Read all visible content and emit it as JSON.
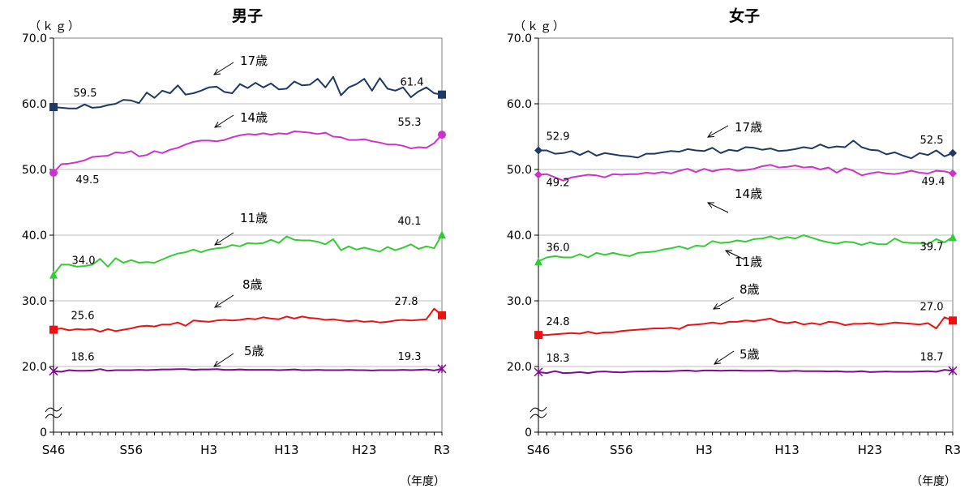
{
  "x_tick_labels": [
    "S46",
    "S56",
    "H3",
    "H13",
    "H23",
    "R3"
  ],
  "y_tick_labels": [
    "70.0",
    "60.0",
    "50.0",
    "40.0",
    "30.0",
    "20.0",
    "0"
  ],
  "unit_label": "（ｋｇ）",
  "year_label": "（年度）",
  "chart_data": [
    {
      "type": "line",
      "title": "男子",
      "xlabel": "（年度）",
      "ylabel": "（ｋｇ）",
      "ylim": [
        0,
        70
      ],
      "axis_break": "between 0 and 20",
      "grid": true,
      "x": [
        "S46",
        "S47",
        "S48",
        "S49",
        "S50",
        "S51",
        "S52",
        "S53",
        "S54",
        "S55",
        "S56",
        "S57",
        "S58",
        "S59",
        "S60",
        "S61",
        "S62",
        "S63",
        "H1",
        "H2",
        "H3",
        "H4",
        "H5",
        "H6",
        "H7",
        "H8",
        "H9",
        "H10",
        "H11",
        "H12",
        "H13",
        "H14",
        "H15",
        "H16",
        "H17",
        "H18",
        "H19",
        "H20",
        "H21",
        "H22",
        "H23",
        "H24",
        "H25",
        "H26",
        "H27",
        "H28",
        "H29",
        "H30",
        "R1",
        "R2",
        "R3"
      ],
      "series": [
        {
          "name": "17歳",
          "color": "#1f3864",
          "marker": "square",
          "start_label": "59.5",
          "end_label": "61.4",
          "values": [
            59.5,
            59.4,
            59.3,
            59.3,
            59.9,
            59.4,
            59.5,
            59.8,
            60.0,
            60.6,
            60.5,
            60.1,
            61.7,
            60.9,
            62.0,
            61.6,
            62.8,
            61.4,
            61.6,
            62.0,
            62.5,
            62.6,
            61.8,
            61.6,
            63.0,
            62.4,
            63.2,
            62.5,
            63.1,
            62.2,
            62.3,
            63.4,
            62.8,
            62.9,
            63.8,
            62.5,
            64.1,
            61.3,
            62.5,
            63.0,
            63.8,
            62.0,
            63.9,
            62.3,
            62.0,
            62.5,
            61.0,
            61.9,
            62.5,
            61.6,
            61.4
          ]
        },
        {
          "name": "14歳",
          "color": "#cc33cc",
          "marker": "circle",
          "start_label": "49.5",
          "end_label": "55.3",
          "values": [
            49.5,
            50.8,
            50.9,
            51.1,
            51.4,
            51.9,
            52.0,
            52.1,
            52.6,
            52.5,
            52.8,
            52.0,
            52.2,
            52.8,
            52.5,
            53.0,
            53.3,
            53.8,
            54.2,
            54.4,
            54.4,
            54.3,
            54.5,
            54.9,
            55.2,
            55.4,
            55.3,
            55.5,
            55.3,
            55.5,
            55.4,
            55.8,
            55.7,
            55.6,
            55.4,
            55.6,
            55.0,
            54.9,
            54.5,
            54.5,
            54.6,
            54.3,
            54.1,
            53.8,
            53.8,
            53.6,
            53.2,
            53.4,
            53.3,
            54.0,
            55.3
          ]
        },
        {
          "name": "11歳",
          "color": "#33cc33",
          "marker": "triangle",
          "start_label": "34.0",
          "end_label": "40.1",
          "values": [
            34.0,
            35.5,
            35.5,
            35.2,
            35.3,
            35.5,
            36.4,
            35.2,
            36.5,
            35.8,
            36.2,
            35.8,
            35.9,
            35.8,
            36.3,
            36.8,
            37.2,
            37.4,
            37.8,
            37.4,
            37.8,
            38.0,
            38.1,
            38.5,
            38.3,
            38.8,
            38.7,
            38.8,
            39.3,
            38.8,
            39.8,
            39.3,
            39.2,
            39.2,
            39.0,
            38.6,
            39.4,
            37.7,
            38.3,
            37.8,
            38.1,
            37.8,
            37.5,
            38.2,
            37.7,
            38.1,
            38.6,
            37.9,
            38.3,
            38.0,
            40.1
          ]
        },
        {
          "name": "8歳",
          "color": "#ee1111",
          "marker": "square",
          "start_label": "25.6",
          "end_label": "27.8",
          "values": [
            25.6,
            25.8,
            25.5,
            25.7,
            25.6,
            25.7,
            25.3,
            25.7,
            25.4,
            25.6,
            25.8,
            26.1,
            26.2,
            26.1,
            26.4,
            26.4,
            26.7,
            26.2,
            27.0,
            26.9,
            26.8,
            27.0,
            27.1,
            27.0,
            27.1,
            27.3,
            27.2,
            27.5,
            27.3,
            27.2,
            27.6,
            27.3,
            27.6,
            27.4,
            27.3,
            27.1,
            27.2,
            27.0,
            26.9,
            27.0,
            26.8,
            26.9,
            26.7,
            26.8,
            27.0,
            27.1,
            27.0,
            27.1,
            27.2,
            28.8,
            27.8
          ]
        },
        {
          "name": "5歳",
          "color": "#7b0d8c",
          "marker": "star",
          "start_label": "18.6",
          "end_label": "19.3",
          "values": [
            18.6,
            18.4,
            18.9,
            18.7,
            18.7,
            18.8,
            19.2,
            18.7,
            18.9,
            18.9,
            18.9,
            19.0,
            18.9,
            19.0,
            19.1,
            19.1,
            19.2,
            19.2,
            19.0,
            19.1,
            19.1,
            19.2,
            19.0,
            19.0,
            19.1,
            19.0,
            19.0,
            19.0,
            19.0,
            18.9,
            19.0,
            19.1,
            18.9,
            18.9,
            19.0,
            18.9,
            18.9,
            18.9,
            19.0,
            18.9,
            18.9,
            18.8,
            18.9,
            18.9,
            18.9,
            19.0,
            18.9,
            19.0,
            19.1,
            18.8,
            19.3
          ]
        }
      ]
    },
    {
      "type": "line",
      "title": "女子",
      "xlabel": "（年度）",
      "ylabel": "（ｋｇ）",
      "ylim": [
        0,
        70
      ],
      "axis_break": "between 0 and 20",
      "grid": true,
      "x": [
        "S46",
        "S47",
        "S48",
        "S49",
        "S50",
        "S51",
        "S52",
        "S53",
        "S54",
        "S55",
        "S56",
        "S57",
        "S58",
        "S59",
        "S60",
        "S61",
        "S62",
        "S63",
        "H1",
        "H2",
        "H3",
        "H4",
        "H5",
        "H6",
        "H7",
        "H8",
        "H9",
        "H10",
        "H11",
        "H12",
        "H13",
        "H14",
        "H15",
        "H16",
        "H17",
        "H18",
        "H19",
        "H20",
        "H21",
        "H22",
        "H23",
        "H24",
        "H25",
        "H26",
        "H27",
        "H28",
        "H29",
        "H30",
        "R1",
        "R2",
        "R3"
      ],
      "series": [
        {
          "name": "17歳",
          "color": "#1f3864",
          "marker": "diamond",
          "start_label": "52.9",
          "end_label": "52.5",
          "values": [
            52.9,
            52.9,
            52.4,
            52.5,
            52.8,
            52.2,
            52.8,
            52.1,
            52.5,
            52.3,
            52.1,
            52.0,
            51.8,
            52.4,
            52.4,
            52.6,
            52.8,
            52.7,
            53.1,
            52.9,
            52.8,
            53.3,
            52.5,
            53.0,
            52.8,
            53.4,
            53.3,
            53.0,
            53.2,
            52.8,
            52.9,
            53.1,
            53.4,
            53.2,
            53.8,
            53.3,
            53.5,
            53.4,
            54.4,
            53.4,
            53.0,
            52.9,
            52.3,
            52.6,
            52.1,
            51.7,
            52.5,
            52.2,
            52.9,
            52.0,
            52.5
          ]
        },
        {
          "name": "14歳",
          "color": "#cc33cc",
          "marker": "diamond",
          "start_label": "49.2",
          "end_label": "49.4",
          "values": [
            49.2,
            49.3,
            48.8,
            48.3,
            48.8,
            49.0,
            49.2,
            49.1,
            48.8,
            49.3,
            49.2,
            49.3,
            49.3,
            49.5,
            49.4,
            49.6,
            49.4,
            49.8,
            50.1,
            49.6,
            50.1,
            49.7,
            50.0,
            50.1,
            49.8,
            49.9,
            50.1,
            50.5,
            50.7,
            50.3,
            50.4,
            50.6,
            50.3,
            50.4,
            50.0,
            50.3,
            49.5,
            50.2,
            49.8,
            49.1,
            49.4,
            49.6,
            49.4,
            49.3,
            49.5,
            49.8,
            49.5,
            49.4,
            49.8,
            49.7,
            49.4
          ]
        },
        {
          "name": "11歳",
          "color": "#33cc33",
          "marker": "triangle",
          "start_label": "36.0",
          "end_label": "39.7",
          "values": [
            36.0,
            36.6,
            36.8,
            36.6,
            36.6,
            37.1,
            36.6,
            37.3,
            37.0,
            37.3,
            37.0,
            36.8,
            37.3,
            37.4,
            37.5,
            37.8,
            38.0,
            38.3,
            37.9,
            38.4,
            38.3,
            39.1,
            38.8,
            38.9,
            39.2,
            39.0,
            39.4,
            39.5,
            39.8,
            39.4,
            39.7,
            39.5,
            40.0,
            39.6,
            39.2,
            38.9,
            38.7,
            39.0,
            38.9,
            38.5,
            38.9,
            38.6,
            38.6,
            39.5,
            38.9,
            38.8,
            38.8,
            38.6,
            39.4,
            38.9,
            39.7
          ]
        },
        {
          "name": "8歳",
          "color": "#ee1111",
          "marker": "square",
          "start_label": "24.8",
          "end_label": "27.0",
          "values": [
            24.8,
            24.8,
            24.9,
            25.0,
            25.1,
            25.0,
            25.3,
            25.0,
            25.2,
            25.2,
            25.4,
            25.5,
            25.6,
            25.7,
            25.8,
            25.8,
            25.9,
            25.7,
            26.3,
            26.4,
            26.5,
            26.7,
            26.5,
            26.8,
            26.8,
            27.0,
            26.9,
            27.1,
            27.3,
            26.8,
            26.6,
            26.8,
            26.4,
            26.6,
            26.4,
            26.8,
            26.7,
            26.3,
            26.5,
            26.5,
            26.6,
            26.4,
            26.5,
            26.7,
            26.6,
            26.5,
            26.4,
            26.6,
            25.8,
            27.5,
            27.0
          ]
        },
        {
          "name": "5歳",
          "color": "#7b0d8c",
          "marker": "star",
          "start_label": "18.3",
          "end_label": "18.7",
          "values": [
            18.3,
            18.0,
            18.6,
            18.0,
            18.1,
            18.3,
            18.0,
            18.4,
            18.5,
            18.3,
            18.2,
            18.4,
            18.5,
            18.5,
            18.6,
            18.5,
            18.6,
            18.7,
            18.8,
            18.6,
            18.8,
            18.8,
            18.7,
            18.8,
            18.8,
            18.7,
            18.7,
            18.7,
            18.8,
            18.6,
            18.6,
            18.7,
            18.6,
            18.6,
            18.6,
            18.5,
            18.6,
            18.4,
            18.4,
            18.6,
            18.3,
            18.4,
            18.5,
            18.4,
            18.4,
            18.4,
            18.5,
            18.6,
            18.4,
            19.0,
            18.7
          ]
        }
      ]
    }
  ]
}
